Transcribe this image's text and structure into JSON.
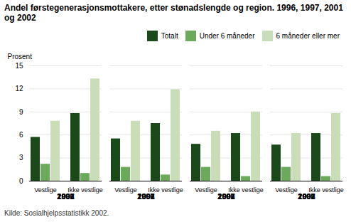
{
  "chart_data": {
    "type": "bar",
    "title": "Andel førstegenerasjonsmottakere, etter stønadslengde og region. 1996, 1997, 2001 og 2002",
    "ylabel": "Prosent",
    "source": "Kilde: Sosialhjelpsstatistikk 2002.",
    "groups": [
      "1996",
      "1997",
      "2001",
      "2002"
    ],
    "categories": [
      "Vestlige",
      "Ikke vestlige"
    ],
    "series": [
      {
        "name": "Totalt",
        "color": "#1a4a1a",
        "values": [
          [
            5.7,
            8.8
          ],
          [
            5.5,
            7.5
          ],
          [
            4.8,
            6.2
          ],
          [
            4.7,
            6.2
          ]
        ]
      },
      {
        "name": "Under 6 måneder",
        "color": "#6aaa5a",
        "values": [
          [
            2.2,
            1.0
          ],
          [
            1.8,
            0.8
          ],
          [
            1.8,
            0.6
          ],
          [
            1.8,
            0.6
          ]
        ]
      },
      {
        "name": "6 måneder eller mer",
        "color": "#c8ddb8",
        "values": [
          [
            7.8,
            13.3
          ],
          [
            7.8,
            11.9
          ],
          [
            6.5,
            9.0
          ],
          [
            6.2,
            8.8
          ]
        ]
      }
    ],
    "ylim": [
      0,
      15
    ],
    "yticks": [
      0,
      3,
      6,
      9,
      12,
      15
    ],
    "grid": true,
    "legend": "upper right"
  }
}
